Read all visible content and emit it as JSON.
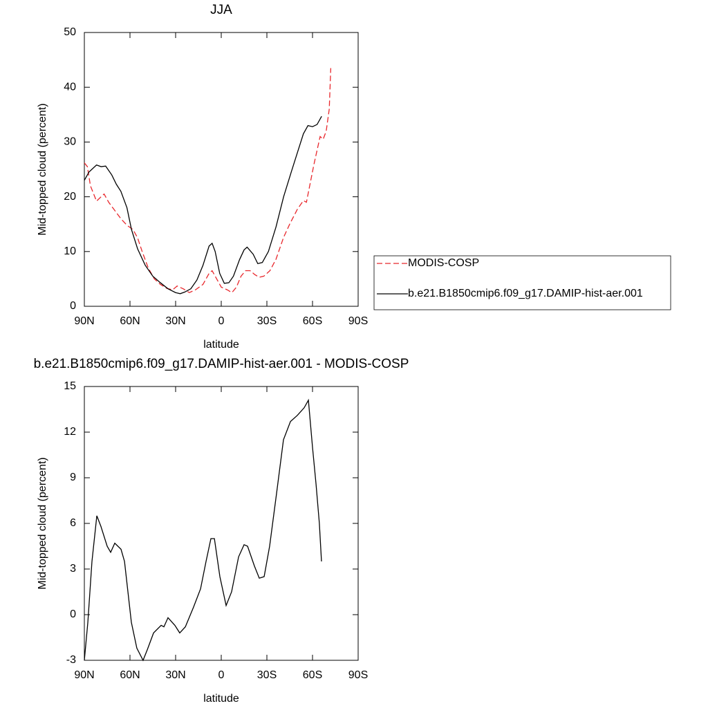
{
  "chart_data": [
    {
      "type": "line",
      "title": "JJA",
      "xlabel": "latitude",
      "ylabel": "Mid-topped cloud (percent)",
      "xlim": [
        90,
        -90
      ],
      "ylim": [
        0,
        50
      ],
      "xticks": [
        {
          "value": 90,
          "label": "90N"
        },
        {
          "value": 60,
          "label": "60N"
        },
        {
          "value": 30,
          "label": "30N"
        },
        0,
        {
          "value": -30,
          "label": "30S"
        },
        {
          "value": -60,
          "label": "60S"
        },
        {
          "value": -90,
          "label": "90S"
        }
      ],
      "yticks": [
        0,
        10,
        20,
        30,
        40,
        50
      ],
      "legend": "right",
      "series": [
        {
          "name": "MODIS-COSP",
          "color": "#e8262b",
          "linestyle": "dashed",
          "x": [
            90,
            88,
            86,
            82,
            79,
            77,
            74,
            70,
            66,
            62,
            58,
            55,
            52,
            48,
            44,
            40,
            36,
            32,
            29,
            25,
            21,
            17,
            12,
            8,
            6,
            3,
            0,
            -4,
            -7,
            -10,
            -13,
            -16,
            -19,
            -22,
            -25,
            -28,
            -32,
            -36,
            -41,
            -45,
            -50,
            -54,
            -56,
            -61,
            -65,
            -67,
            -69,
            -71,
            -72
          ],
          "values": [
            26.2,
            25.5,
            22,
            19.2,
            20,
            20.5,
            19,
            17.5,
            16,
            14.8,
            14,
            12.5,
            10,
            7,
            5,
            4,
            3.3,
            3,
            3.7,
            3.2,
            2.5,
            3,
            4,
            6,
            6.5,
            5,
            3.5,
            3,
            2.5,
            3.5,
            5.5,
            6.5,
            6.5,
            5.8,
            5.3,
            5.5,
            6.5,
            8.6,
            12.6,
            15,
            17.7,
            19.3,
            19,
            26,
            31,
            30.5,
            32,
            36,
            43.5
          ]
        },
        {
          "name": "b.e21.B1850cmip6.f09_g17.DAMIP-hist-aer.001",
          "color": "#000000",
          "linestyle": "solid",
          "x": [
            90,
            87,
            82,
            79,
            76,
            72,
            69,
            66,
            62,
            59,
            55,
            50,
            45,
            40,
            35,
            30,
            27,
            24,
            20,
            16,
            12,
            8,
            6,
            4,
            1,
            -2,
            -5,
            -8,
            -12,
            -15,
            -17,
            -21,
            -24,
            -27,
            -31,
            -36,
            -41,
            -46,
            -50,
            -54,
            -57,
            -60,
            -63,
            -66
          ],
          "values": [
            23,
            24.5,
            25.8,
            25.5,
            25.6,
            24,
            22.3,
            21,
            18,
            14,
            10.5,
            7.5,
            5.5,
            4.3,
            3.2,
            2.5,
            2.3,
            2.6,
            3.2,
            4.8,
            7.5,
            11,
            11.5,
            10,
            6,
            4.2,
            4.3,
            5.5,
            8.5,
            10.3,
            10.8,
            9.5,
            7.8,
            8,
            10,
            14.5,
            20,
            24.5,
            28,
            31.5,
            33,
            32.8,
            33.2,
            34.7
          ]
        }
      ]
    },
    {
      "type": "line",
      "title": "b.e21.B1850cmip6.f09_g17.DAMIP-hist-aer.001 - MODIS-COSP",
      "xlabel": "latitude",
      "ylabel": "Mid-topped cloud (percent)",
      "xlim": [
        90,
        -90
      ],
      "ylim": [
        -3,
        15
      ],
      "xticks": [
        {
          "value": 90,
          "label": "90N"
        },
        {
          "value": 60,
          "label": "60N"
        },
        {
          "value": 30,
          "label": "30N"
        },
        0,
        {
          "value": -30,
          "label": "30S"
        },
        {
          "value": -60,
          "label": "60S"
        },
        {
          "value": -90,
          "label": "90S"
        }
      ],
      "yticks": [
        -3,
        0,
        3,
        6,
        9,
        12,
        15
      ],
      "series": [
        {
          "color": "#000000",
          "linestyle": "solid",
          "x": [
            90,
            87.7,
            85,
            81.8,
            79.1,
            75,
            72.7,
            70,
            65.9,
            63.6,
            59.1,
            55.5,
            51.4,
            48.6,
            44.5,
            39.5,
            37.7,
            35,
            30.5,
            27.3,
            23.6,
            18.2,
            13.6,
            10,
            6.8,
            4.5,
            0.9,
            -3.2,
            -6.8,
            -11.4,
            -15,
            -17.3,
            -21.8,
            -25,
            -28.2,
            -31.8,
            -36.4,
            -40.9,
            -45.5,
            -50,
            -54.5,
            -57.3,
            -60,
            -62.3,
            -64.5,
            -65.9
          ],
          "values": [
            -3,
            -0.5,
            3.5,
            6.5,
            5.8,
            4.5,
            4.1,
            4.7,
            4.3,
            3.5,
            -0.5,
            -2.2,
            -3,
            -2.3,
            -1.2,
            -0.7,
            -0.8,
            -0.2,
            -0.7,
            -1.2,
            -0.8,
            0.5,
            1.7,
            3.5,
            5,
            5,
            2.5,
            0.6,
            1.5,
            3.8,
            4.6,
            4.5,
            3.2,
            2.4,
            2.5,
            4.5,
            8,
            11.5,
            12.7,
            13.1,
            13.6,
            14.1,
            11,
            8.6,
            6,
            3.5
          ]
        }
      ]
    }
  ]
}
